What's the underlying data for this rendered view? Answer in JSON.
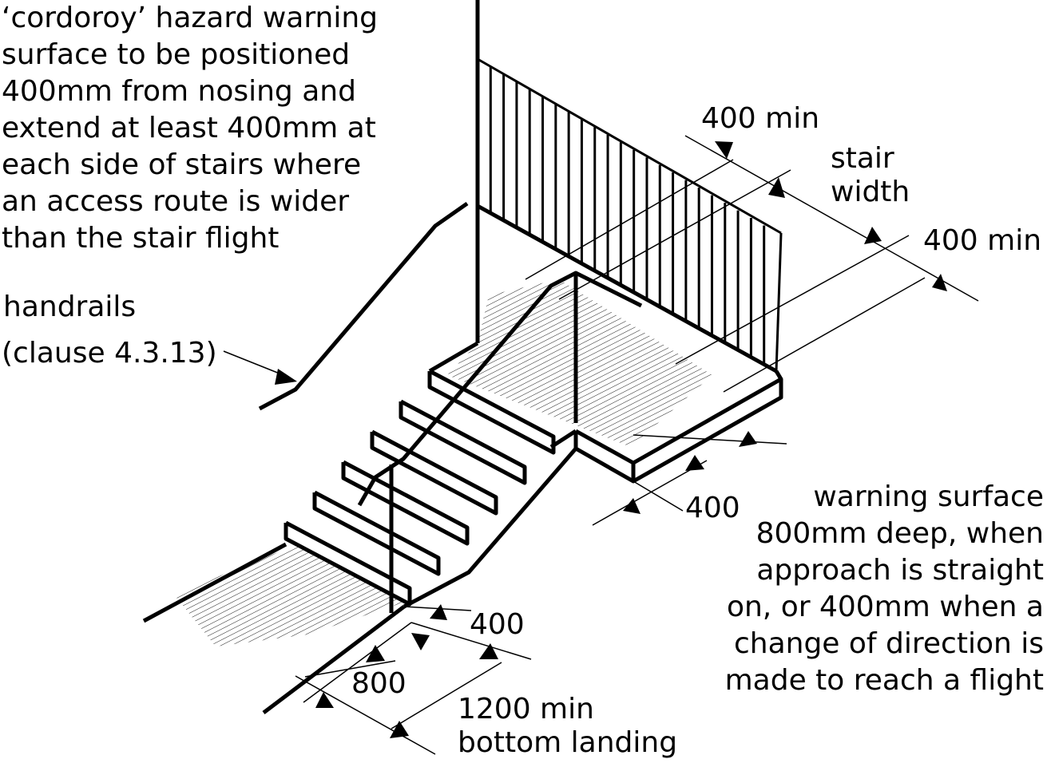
{
  "notes": {
    "cordoroy": "‘cordoroy’ hazard warning\nsurface to be positioned\n400mm from nosing and\nextend at least 400mm at\neach side of stairs where\nan access route is wider\nthan the stair flight",
    "handrails_line1": "handrails",
    "handrails_line2": "(clause 4.3.13)",
    "warning_surface": "warning surface\n800mm deep, when\napproach is straight\non, or 400mm when a\nchange of direction is\nmade to reach a flight"
  },
  "dimensions": {
    "top_left_400": "400 min",
    "stair_width_line1": "stair",
    "stair_width_line2": "width",
    "top_right_400": "400 min",
    "landing_front_400": "400",
    "bottom_400": "400",
    "bottom_800": "800",
    "bottom_landing_line1": "1200 min",
    "bottom_landing_line2": "bottom landing"
  },
  "colors": {
    "line": "#000000",
    "hatch": "#000000",
    "background": "#ffffff"
  }
}
